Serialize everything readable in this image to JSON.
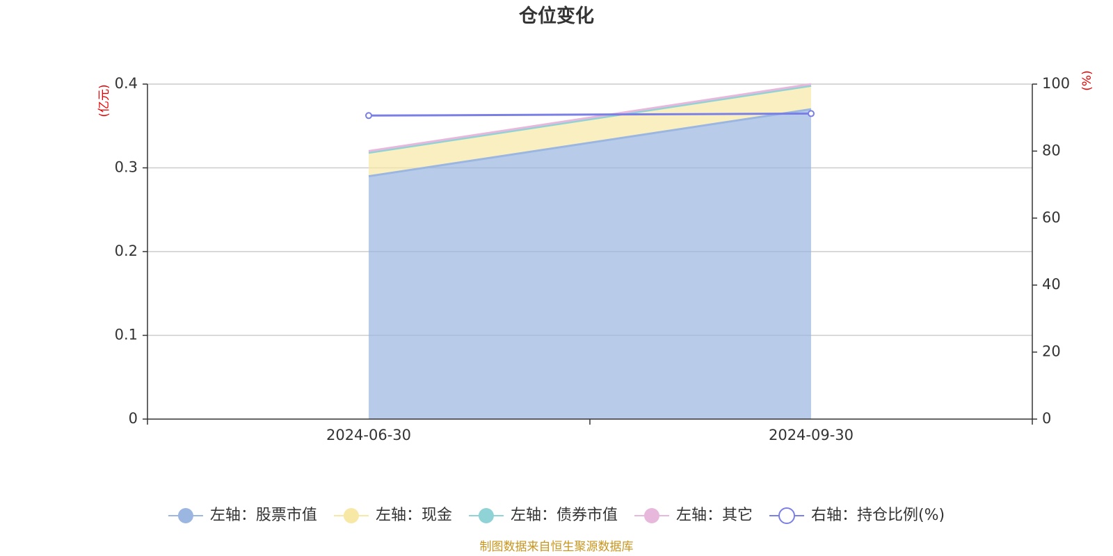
{
  "chart_data": {
    "type": "area",
    "title": "仓位变化",
    "categories": [
      "2024-06-30",
      "2024-09-30"
    ],
    "left_axis": {
      "unit": "(亿元)",
      "ylim": [
        0,
        0.4
      ],
      "ticks": [
        "0",
        "0.1",
        "0.2",
        "0.3",
        "0.4"
      ]
    },
    "right_axis": {
      "unit": "(%)",
      "ylim": [
        0,
        100
      ],
      "ticks": [
        "0",
        "20",
        "40",
        "60",
        "80",
        "100"
      ]
    },
    "series": [
      {
        "name": "左轴：股票市值",
        "axis": "left",
        "stacked": true,
        "values": [
          0.29,
          0.37
        ],
        "color": "#9ab6e1"
      },
      {
        "name": "左轴：现金",
        "axis": "left",
        "stacked": true,
        "values": [
          0.028,
          0.028
        ],
        "color": "#f8e8a6"
      },
      {
        "name": "左轴：债券市值",
        "axis": "left",
        "stacked": true,
        "values": [
          0,
          0
        ],
        "color": "#8fd3d6"
      },
      {
        "name": "左轴：其它",
        "axis": "left",
        "stacked": true,
        "values": [
          0.002,
          0.002
        ],
        "color": "#e8b8dc"
      },
      {
        "name": "右轴：持仓比例(%)",
        "axis": "right",
        "type": "line",
        "values": [
          90.6,
          91.2
        ],
        "color": "#7a7fe6"
      }
    ],
    "grid": true,
    "legend_position": "bottom"
  },
  "footer": {
    "source": "制图数据来自恒生聚源数据库"
  }
}
